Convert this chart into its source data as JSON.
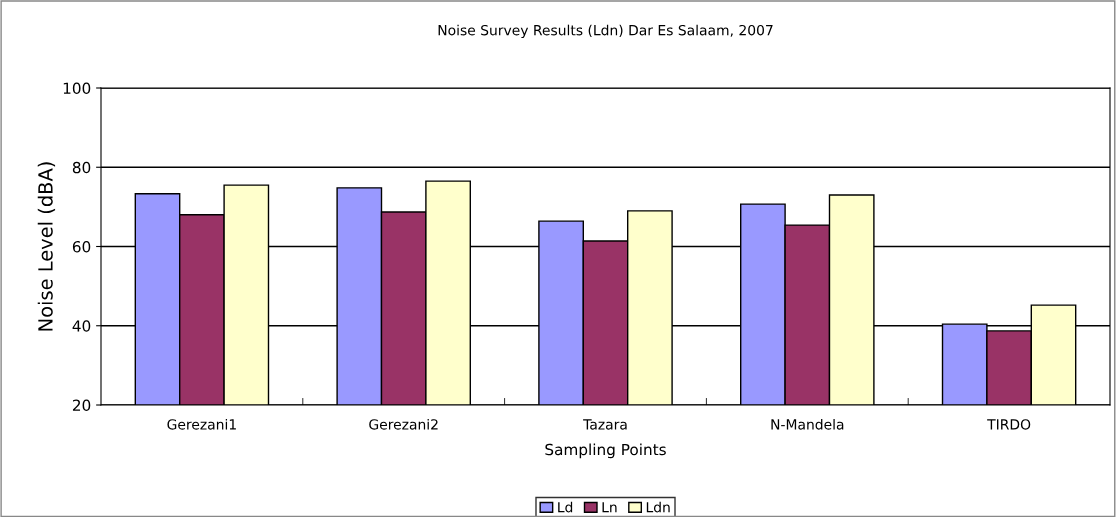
{
  "chart_data": {
    "type": "bar",
    "title": "Noise Survey Results (Ldn) Dar Es Salaam, 2007",
    "xlabel": "Sampling Points",
    "ylabel": "Noise Level (dBA)",
    "categories": [
      "Gerezani1",
      "Gerezani2",
      "Tazara",
      "N-Mandela",
      "TIRDO"
    ],
    "series": [
      {
        "name": "Ld",
        "color": "#9999ff",
        "values": [
          73.3,
          74.8,
          66.4,
          70.7,
          40.4
        ]
      },
      {
        "name": "Ln",
        "color": "#993366",
        "values": [
          68.0,
          68.7,
          61.4,
          65.4,
          38.7
        ]
      },
      {
        "name": "Ldn",
        "color": "#ffffcc",
        "values": [
          75.5,
          76.5,
          69.0,
          73.0,
          45.2
        ]
      }
    ],
    "ylim": [
      20,
      100
    ],
    "yticks": [
      20,
      40,
      60,
      80,
      100
    ],
    "grid": "y",
    "legend": "bottom"
  }
}
